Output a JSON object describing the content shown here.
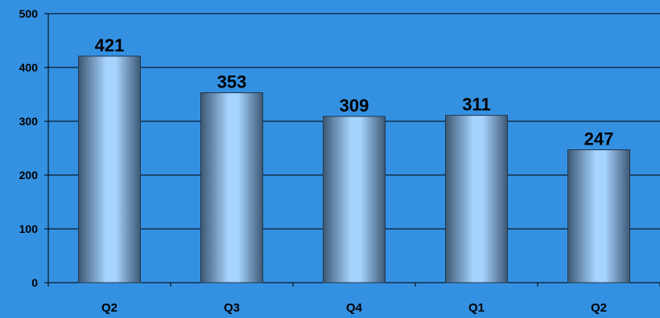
{
  "chart_data": {
    "type": "bar",
    "title": "",
    "xlabel": "",
    "ylabel": "",
    "categories": [
      "Q2",
      "Q3",
      "Q4",
      "Q1",
      "Q2"
    ],
    "series": [
      {
        "values": [
          421,
          353,
          309,
          311,
          247
        ]
      }
    ],
    "ylim": [
      0,
      500
    ],
    "yticks": [
      0,
      100,
      200,
      300,
      400,
      500
    ],
    "grid": true,
    "legend": "none",
    "data_labels": true
  },
  "colors": {
    "background": "#3491e2",
    "bar_light": "#a6d4ff",
    "bar_dark": "#3d5873",
    "gridline": "#000000"
  }
}
